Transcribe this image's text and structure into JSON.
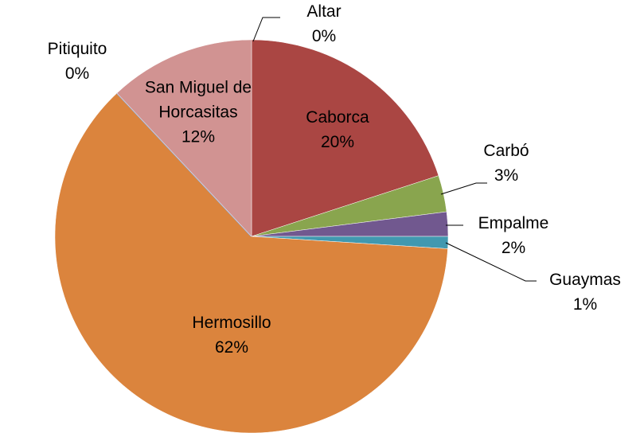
{
  "chart_data": {
    "type": "pie",
    "categories": [
      "Altar",
      "Caborca",
      "Carbó",
      "Empalme",
      "Guaymas",
      "Hermosillo",
      "Pitiquito",
      "San Miguel de Horcasitas"
    ],
    "values": [
      0,
      20,
      3,
      2,
      1,
      62,
      0,
      12
    ],
    "value_labels": [
      "0%",
      "20%",
      "3%",
      "2%",
      "1%",
      "62%",
      "0%",
      "12%"
    ],
    "colors": [
      "#4f81bd",
      "#aa4643",
      "#89a54e",
      "#71588f",
      "#4198af",
      "#db843d",
      "#93a9cf",
      "#d19392"
    ]
  }
}
